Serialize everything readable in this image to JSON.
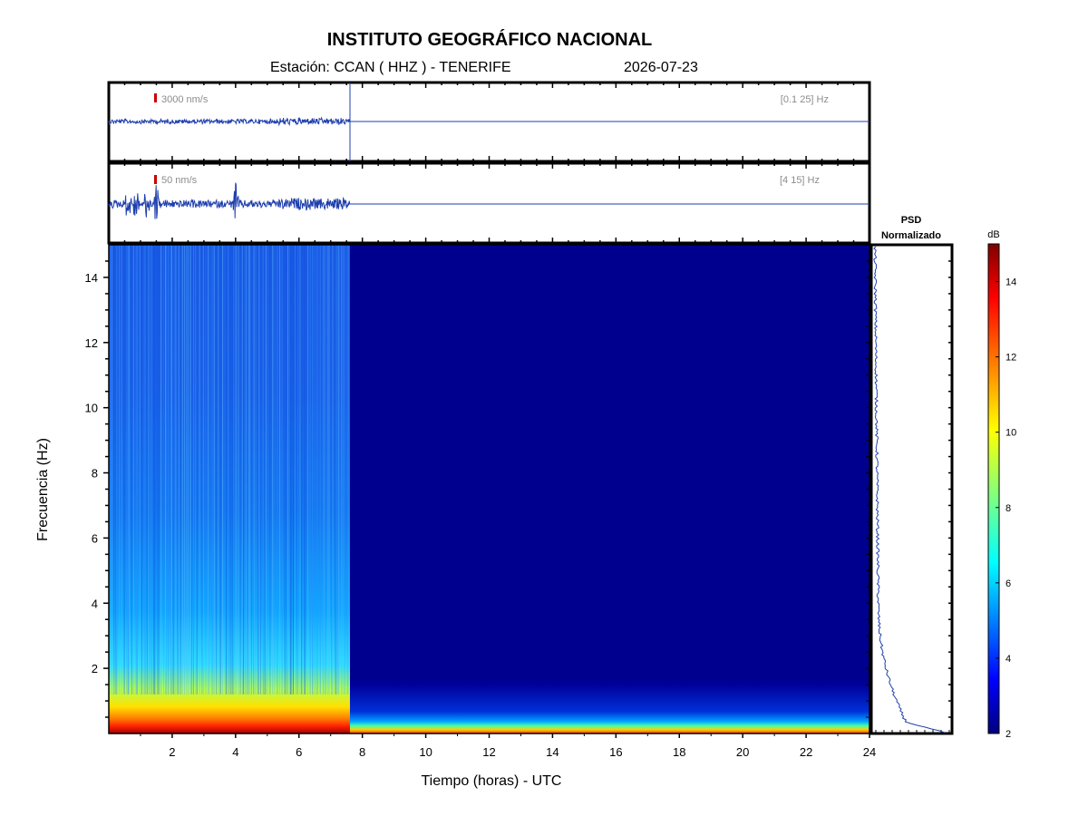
{
  "header": {
    "title": "INSTITUTO GEOGRÁFICO NACIONAL",
    "station": "Estación:  CCAN ( HHZ ) - TENERIFE",
    "date": "2026-07-23"
  },
  "colors": {
    "trace": "#1f3fae",
    "frame": "#000000",
    "spec_background": "#00008f",
    "scale_marker": "#cc0000",
    "annotation_text": "#8c8c8c"
  },
  "icons": {
    "scale_marker": "scale-marker-icon"
  },
  "chart_data": [
    {
      "type": "line",
      "panel": "seismogram-broadband",
      "scale_label": "3000 nm/s",
      "band_label": "[0.1 25] Hz",
      "x_range": [
        0,
        24
      ],
      "data_end_hour": 7.6,
      "description_free": true
    },
    {
      "type": "line",
      "panel": "seismogram-filtered",
      "scale_label": "50 nm/s",
      "band_label": "[4 15] Hz",
      "x_range": [
        0,
        24
      ],
      "data_end_hour": 7.6,
      "bursts_at_hours": [
        0.6,
        0.85,
        1.2,
        1.5,
        4.0
      ]
    },
    {
      "type": "heatmap",
      "panel": "spectrogram",
      "xlabel": "Tiempo (horas) - UTC",
      "ylabel": "Frecuencia  (Hz)",
      "xlim": [
        0,
        24
      ],
      "ylim": [
        0,
        15
      ],
      "x_ticks": [
        2,
        4,
        6,
        8,
        10,
        12,
        14,
        16,
        18,
        20,
        22,
        24
      ],
      "y_ticks": [
        2,
        4,
        6,
        8,
        10,
        12,
        14
      ],
      "data_end_hour": 7.6,
      "colormap": "jet"
    },
    {
      "type": "line",
      "panel": "psd",
      "title": "PSD\nNormalizado",
      "title_lines": [
        "PSD",
        "Normalizado"
      ],
      "ylim": [
        0,
        15
      ],
      "y_ticks": [
        2,
        4,
        6,
        8,
        10,
        12,
        14
      ]
    },
    {
      "type": "colorbar",
      "panel": "colorbar",
      "label": "dB",
      "range": [
        2,
        15
      ],
      "ticks": [
        2,
        4,
        6,
        8,
        10,
        12,
        14
      ],
      "colormap": "jet"
    }
  ]
}
